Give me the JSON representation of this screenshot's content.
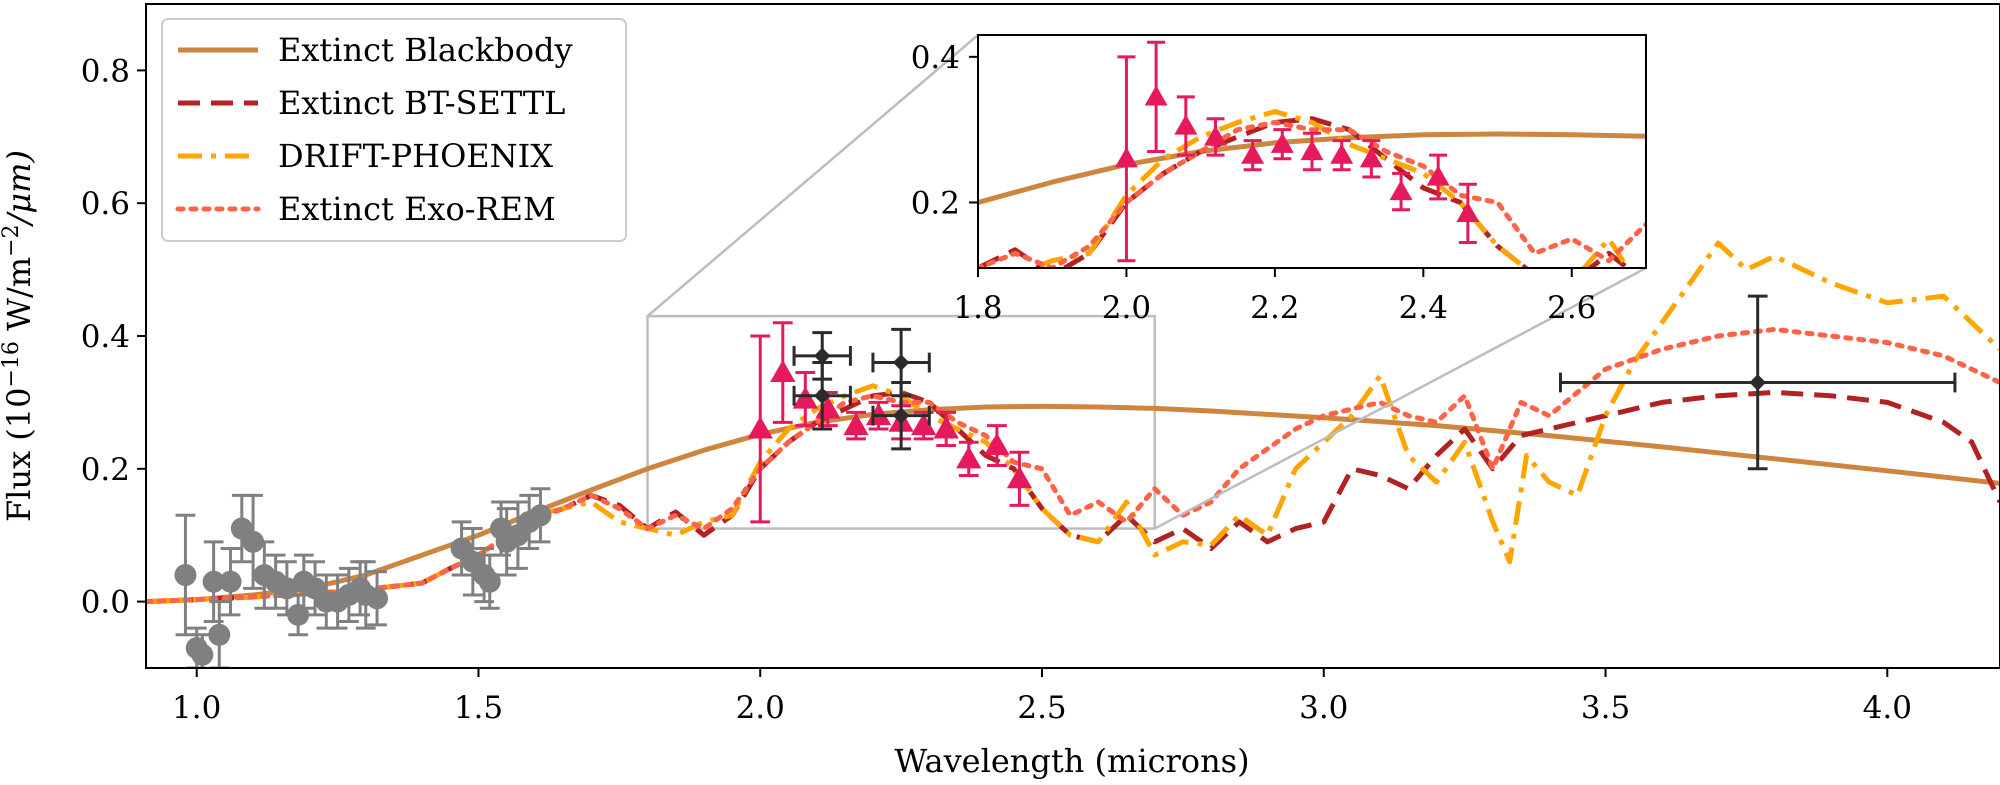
{
  "chart_data": [
    {
      "type": "line",
      "title": "",
      "xlabel": "Wavelength (microns)",
      "ylabel": "Flux (10^-16 W/m^-2/μm)",
      "xlim": [
        0.91,
        4.2
      ],
      "ylim": [
        -0.1,
        0.9
      ],
      "xticks": [
        {
          "value": 1.0,
          "label": "1.0"
        },
        {
          "value": 1.5,
          "label": "1.5"
        },
        {
          "value": 2.0,
          "label": "2.0"
        },
        {
          "value": 2.5,
          "label": "2.5"
        },
        {
          "value": 3.0,
          "label": "3.0"
        },
        {
          "value": 3.5,
          "label": "3.5"
        },
        {
          "value": 4.0,
          "label": "4.0"
        }
      ],
      "yticks": [
        {
          "value": 0.0,
          "label": "0.0"
        },
        {
          "value": 0.2,
          "label": "0.2"
        },
        {
          "value": 0.4,
          "label": "0.4"
        },
        {
          "value": 0.6,
          "label": "0.6"
        },
        {
          "value": 0.8,
          "label": "0.8"
        }
      ],
      "legend_position": "top-left",
      "grid": false,
      "series": [
        {
          "name": "Extinct Blackbody",
          "style": "solid",
          "color": "#cd853f",
          "x": [
            0.91,
            1.0,
            1.1,
            1.2,
            1.3,
            1.4,
            1.5,
            1.6,
            1.7,
            1.8,
            1.9,
            2.0,
            2.1,
            2.2,
            2.3,
            2.4,
            2.5,
            2.6,
            2.7,
            2.8,
            2.9,
            3.0,
            3.2,
            3.4,
            3.6,
            3.8,
            4.0,
            4.2
          ],
          "y": [
            0.0,
            0.003,
            0.01,
            0.02,
            0.04,
            0.07,
            0.1,
            0.135,
            0.168,
            0.2,
            0.228,
            0.252,
            0.27,
            0.282,
            0.289,
            0.293,
            0.294,
            0.293,
            0.291,
            0.287,
            0.282,
            0.277,
            0.265,
            0.25,
            0.233,
            0.215,
            0.197,
            0.178
          ]
        },
        {
          "name": "Extinct BT-SETTL",
          "style": "dashed",
          "color": "#b22222",
          "x": [
            0.91,
            1.0,
            1.1,
            1.2,
            1.3,
            1.4,
            1.45,
            1.5,
            1.55,
            1.6,
            1.65,
            1.7,
            1.75,
            1.8,
            1.85,
            1.9,
            1.95,
            2.0,
            2.05,
            2.1,
            2.15,
            2.2,
            2.25,
            2.3,
            2.35,
            2.4,
            2.45,
            2.5,
            2.55,
            2.6,
            2.65,
            2.7,
            2.75,
            2.8,
            2.85,
            2.9,
            2.95,
            3.0,
            3.05,
            3.1,
            3.15,
            3.2,
            3.25,
            3.3,
            3.35,
            3.4,
            3.5,
            3.6,
            3.7,
            3.8,
            3.9,
            4.0,
            4.1,
            4.15,
            4.2
          ],
          "y": [
            0.0,
            0.003,
            0.007,
            0.012,
            0.018,
            0.028,
            0.05,
            0.07,
            0.1,
            0.125,
            0.14,
            0.16,
            0.145,
            0.11,
            0.135,
            0.1,
            0.13,
            0.2,
            0.24,
            0.27,
            0.29,
            0.31,
            0.315,
            0.3,
            0.26,
            0.22,
            0.2,
            0.14,
            0.1,
            0.09,
            0.13,
            0.09,
            0.11,
            0.08,
            0.12,
            0.09,
            0.11,
            0.12,
            0.2,
            0.19,
            0.17,
            0.22,
            0.26,
            0.2,
            0.25,
            0.26,
            0.28,
            0.3,
            0.31,
            0.315,
            0.31,
            0.3,
            0.27,
            0.24,
            0.15
          ]
        },
        {
          "name": "DRIFT-PHOENIX",
          "style": "dashdot",
          "color": "#ffa500",
          "x": [
            0.91,
            1.0,
            1.1,
            1.2,
            1.3,
            1.4,
            1.45,
            1.5,
            1.55,
            1.6,
            1.65,
            1.7,
            1.75,
            1.8,
            1.85,
            1.9,
            1.95,
            2.0,
            2.05,
            2.1,
            2.15,
            2.2,
            2.25,
            2.3,
            2.35,
            2.4,
            2.45,
            2.5,
            2.55,
            2.6,
            2.65,
            2.7,
            2.75,
            2.8,
            2.85,
            2.9,
            2.95,
            3.0,
            3.05,
            3.1,
            3.15,
            3.2,
            3.25,
            3.3,
            3.33,
            3.36,
            3.4,
            3.45,
            3.5,
            3.55,
            3.6,
            3.65,
            3.7,
            3.75,
            3.8,
            3.9,
            4.0,
            4.1,
            4.2
          ],
          "y": [
            0.0,
            0.003,
            0.007,
            0.012,
            0.018,
            0.028,
            0.05,
            0.07,
            0.1,
            0.13,
            0.14,
            0.15,
            0.12,
            0.11,
            0.1,
            0.12,
            0.13,
            0.21,
            0.26,
            0.29,
            0.31,
            0.325,
            0.31,
            0.28,
            0.26,
            0.24,
            0.2,
            0.14,
            0.1,
            0.09,
            0.15,
            0.07,
            0.09,
            0.085,
            0.13,
            0.1,
            0.2,
            0.24,
            0.28,
            0.34,
            0.22,
            0.18,
            0.24,
            0.12,
            0.06,
            0.22,
            0.18,
            0.16,
            0.28,
            0.36,
            0.42,
            0.48,
            0.54,
            0.5,
            0.52,
            0.48,
            0.45,
            0.46,
            0.38
          ]
        },
        {
          "name": "Extinct Exo-REM",
          "style": "dotted",
          "color": "#ff6347",
          "x": [
            0.91,
            1.0,
            1.1,
            1.2,
            1.3,
            1.4,
            1.45,
            1.5,
            1.55,
            1.6,
            1.65,
            1.7,
            1.75,
            1.8,
            1.85,
            1.9,
            1.95,
            2.0,
            2.05,
            2.1,
            2.15,
            2.2,
            2.25,
            2.3,
            2.35,
            2.4,
            2.45,
            2.5,
            2.55,
            2.6,
            2.65,
            2.7,
            2.75,
            2.8,
            2.85,
            2.9,
            2.95,
            3.0,
            3.05,
            3.1,
            3.15,
            3.2,
            3.25,
            3.3,
            3.35,
            3.4,
            3.5,
            3.6,
            3.7,
            3.8,
            3.9,
            4.0,
            4.1,
            4.2
          ],
          "y": [
            0.0,
            0.003,
            0.007,
            0.012,
            0.018,
            0.028,
            0.05,
            0.07,
            0.1,
            0.125,
            0.14,
            0.16,
            0.14,
            0.11,
            0.13,
            0.11,
            0.14,
            0.2,
            0.24,
            0.27,
            0.3,
            0.31,
            0.3,
            0.3,
            0.27,
            0.25,
            0.21,
            0.2,
            0.13,
            0.15,
            0.12,
            0.17,
            0.13,
            0.15,
            0.2,
            0.23,
            0.26,
            0.28,
            0.29,
            0.3,
            0.28,
            0.27,
            0.31,
            0.2,
            0.3,
            0.28,
            0.35,
            0.38,
            0.4,
            0.41,
            0.4,
            0.39,
            0.37,
            0.33
          ]
        }
      ],
      "errorbar_groups": [
        {
          "color": "#808080",
          "marker": "circle",
          "points": [
            {
              "x": 0.98,
              "y": 0.04,
              "yerr": 0.09
            },
            {
              "x": 1.0,
              "y": -0.07,
              "yerr": 0.03
            },
            {
              "x": 1.01,
              "y": -0.08,
              "yerr": 0.03
            },
            {
              "x": 1.03,
              "y": 0.03,
              "yerr": 0.06
            },
            {
              "x": 1.04,
              "y": -0.05,
              "yerr": 0.05
            },
            {
              "x": 1.06,
              "y": 0.03,
              "yerr": 0.05
            },
            {
              "x": 1.08,
              "y": 0.11,
              "yerr": 0.05
            },
            {
              "x": 1.1,
              "y": 0.09,
              "yerr": 0.07
            },
            {
              "x": 1.12,
              "y": 0.04,
              "yerr": 0.05
            },
            {
              "x": 1.14,
              "y": 0.03,
              "yerr": 0.04
            },
            {
              "x": 1.16,
              "y": 0.02,
              "yerr": 0.04
            },
            {
              "x": 1.18,
              "y": -0.02,
              "yerr": 0.03
            },
            {
              "x": 1.19,
              "y": 0.03,
              "yerr": 0.04
            },
            {
              "x": 1.21,
              "y": 0.02,
              "yerr": 0.04
            },
            {
              "x": 1.23,
              "y": 0.0,
              "yerr": 0.04
            },
            {
              "x": 1.25,
              "y": 0.0,
              "yerr": 0.04
            },
            {
              "x": 1.27,
              "y": 0.01,
              "yerr": 0.04
            },
            {
              "x": 1.29,
              "y": 0.02,
              "yerr": 0.04
            },
            {
              "x": 1.3,
              "y": 0.01,
              "yerr": 0.05
            },
            {
              "x": 1.32,
              "y": 0.005,
              "yerr": 0.04
            },
            {
              "x": 1.47,
              "y": 0.08,
              "yerr": 0.04
            },
            {
              "x": 1.49,
              "y": 0.06,
              "yerr": 0.05
            },
            {
              "x": 1.51,
              "y": 0.04,
              "yerr": 0.04
            },
            {
              "x": 1.52,
              "y": 0.03,
              "yerr": 0.04
            },
            {
              "x": 1.54,
              "y": 0.11,
              "yerr": 0.04
            },
            {
              "x": 1.55,
              "y": 0.09,
              "yerr": 0.05
            },
            {
              "x": 1.57,
              "y": 0.1,
              "yerr": 0.05
            },
            {
              "x": 1.59,
              "y": 0.12,
              "yerr": 0.04
            },
            {
              "x": 1.61,
              "y": 0.13,
              "yerr": 0.04
            }
          ]
        },
        {
          "color": "#e6195a",
          "marker": "triangle",
          "points": [
            {
              "x": 2.0,
              "y": 0.26,
              "yerr": 0.14
            },
            {
              "x": 2.04,
              "y": 0.345,
              "yerr": 0.075
            },
            {
              "x": 2.08,
              "y": 0.305,
              "yerr": 0.04
            },
            {
              "x": 2.12,
              "y": 0.29,
              "yerr": 0.025
            },
            {
              "x": 2.17,
              "y": 0.265,
              "yerr": 0.02
            },
            {
              "x": 2.21,
              "y": 0.28,
              "yerr": 0.02
            },
            {
              "x": 2.25,
              "y": 0.27,
              "yerr": 0.025
            },
            {
              "x": 2.29,
              "y": 0.265,
              "yerr": 0.02
            },
            {
              "x": 2.33,
              "y": 0.26,
              "yerr": 0.025
            },
            {
              "x": 2.37,
              "y": 0.215,
              "yerr": 0.025
            },
            {
              "x": 2.42,
              "y": 0.235,
              "yerr": 0.03
            },
            {
              "x": 2.46,
              "y": 0.185,
              "yerr": 0.04
            }
          ]
        },
        {
          "color": "#2b2b2b",
          "marker": "diamond",
          "points": [
            {
              "x": 2.11,
              "y": 0.37,
              "xerr": 0.05,
              "yerr": 0.035
            },
            {
              "x": 2.11,
              "y": 0.31,
              "xerr": 0.05,
              "yerr": 0.05
            },
            {
              "x": 2.25,
              "y": 0.36,
              "xerr": 0.05,
              "yerr": 0.05
            },
            {
              "x": 2.25,
              "y": 0.28,
              "xerr": 0.05,
              "yerr": 0.05
            },
            {
              "x": 3.77,
              "y": 0.33,
              "xerr": 0.35,
              "yerr": 0.13
            }
          ]
        }
      ]
    },
    {
      "type": "line",
      "title": "",
      "xlabel": "",
      "ylabel": "",
      "xlim": [
        1.8,
        2.7
      ],
      "ylim": [
        0.11,
        0.43
      ],
      "xticks": [
        {
          "value": 1.8,
          "label": "1.8"
        },
        {
          "value": 2.0,
          "label": "2.0"
        },
        {
          "value": 2.2,
          "label": "2.2"
        },
        {
          "value": 2.4,
          "label": "2.4"
        },
        {
          "value": 2.6,
          "label": "2.6"
        }
      ],
      "yticks": [
        {
          "value": 0.2,
          "label": "0.2"
        },
        {
          "value": 0.4,
          "label": "0.4"
        }
      ],
      "grid": false
    }
  ]
}
